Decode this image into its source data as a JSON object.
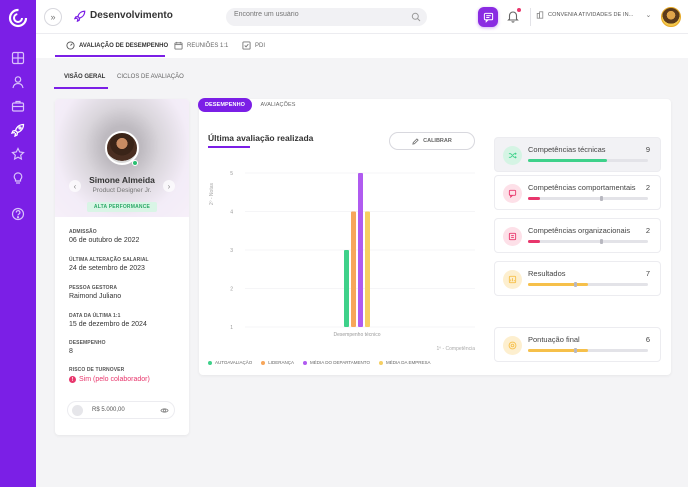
{
  "topbar": {
    "page_title": "Desenvolvimento",
    "search_placeholder": "Encontre um usuário",
    "company": "CONVENIA ATIVIDADES DE IN..."
  },
  "subtabs": [
    {
      "label": "AVALIAÇÃO DE DESEMPENHO",
      "icon": "gauge-icon"
    },
    {
      "label": "REUNIÕES 1:1",
      "icon": "calendar-icon"
    },
    {
      "label": "PDI",
      "icon": "checklist-icon"
    }
  ],
  "tabs2": [
    "VISÃO GERAL",
    "CICLOS DE AVALIAÇÃO"
  ],
  "profile": {
    "name": "Simone Almeida",
    "role": "Product Designer Jr.",
    "badge": "ALTA PERFORMANCE",
    "fields": [
      {
        "label": "ADMISSÃO",
        "value": "06 de outubro de 2022"
      },
      {
        "label": "ÚLTIMA ALTERAÇÃO SALARIAL",
        "value": "24 de setembro de 2023"
      },
      {
        "label": "PESSOA GESTORA",
        "value": "Raimond Juliano"
      },
      {
        "label": "DATA DA ÚLTIMA 1:1",
        "value": "15 de dezembro de 2024"
      },
      {
        "label": "DESEMPENHO",
        "value": "8"
      },
      {
        "label": "RISCO DE TURNOVER",
        "value": "Sim (pelo colaborador)"
      }
    ],
    "salary": "R$ 5.000,00"
  },
  "main": {
    "pills": [
      "DESEMPENHO",
      "AVALIAÇÕES"
    ],
    "title": "Última avaliação realizada",
    "calibrate_label": "CALIBRAR"
  },
  "chart_data": {
    "type": "bar",
    "categories": [
      "Desempenho técnico"
    ],
    "ylabel": "2º - Notas",
    "xlabel": "1º - Competência",
    "ylim": [
      1,
      5
    ],
    "yticks": [
      "1",
      "2",
      "3",
      "4",
      "5"
    ],
    "series": [
      {
        "name": "AUTOAVALIAÇÃO",
        "values": [
          3
        ],
        "color": "#3ed18a"
      },
      {
        "name": "LIDERANÇA",
        "values": [
          4
        ],
        "color": "#f7a65a"
      },
      {
        "name": "MÉDIA DO DEPARTAMENTO",
        "values": [
          5
        ],
        "color": "#b05bf0"
      },
      {
        "name": "MÉDIA DA EMPRESA",
        "values": [
          4
        ],
        "color": "#f6cf63"
      }
    ],
    "grid": true,
    "legend": "bottom-left"
  },
  "competencias": [
    {
      "label": "Competências técnicas",
      "score": "9",
      "progress": 0.66,
      "color": "#3ed18a",
      "icon_bg": "#d5f4e4",
      "icon": "shuffle-icon",
      "marker": null
    },
    {
      "label": "Competências comportamentais",
      "score": "2",
      "progress": 0.1,
      "color": "#e8366c",
      "icon_bg": "#fde0e8",
      "icon": "chat-icon",
      "marker": 0.6
    },
    {
      "label": "Competências organizacionais",
      "score": "2",
      "progress": 0.1,
      "color": "#e8366c",
      "icon_bg": "#fde0e8",
      "icon": "building-icon",
      "marker": 0.6
    },
    {
      "label": "Resultados",
      "score": "7",
      "progress": 0.5,
      "color": "#f6c04a",
      "icon_bg": "#fdefcf",
      "icon": "chart-icon",
      "marker": 0.38
    },
    {
      "label": "Pontuação final",
      "score": "6",
      "progress": 0.5,
      "color": "#f6c04a",
      "icon_bg": "#fdefcf",
      "icon": "target-icon",
      "marker": 0.38
    }
  ]
}
